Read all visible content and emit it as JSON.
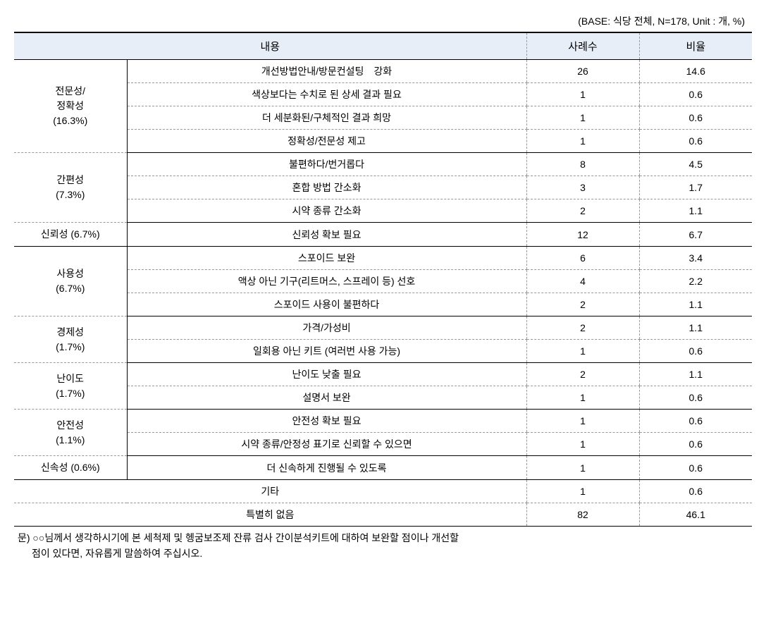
{
  "baseInfo": "(BASE: 식당 전체, N=178, Unit : 개, %)",
  "headers": {
    "content": "내용",
    "count": "사례수",
    "ratio": "비율"
  },
  "categories": [
    {
      "name": "전문성/\n정확성\n(16.3%)",
      "rows": [
        {
          "item": "개선방법안내/방문컨설팅　강화",
          "count": "26",
          "ratio": "14.6"
        },
        {
          "item": "색상보다는 수치로 된 상세 결과 필요",
          "count": "1",
          "ratio": "0.6"
        },
        {
          "item": "더 세분화된/구체적인 결과 희망",
          "count": "1",
          "ratio": "0.6"
        },
        {
          "item": "정확성/전문성 제고",
          "count": "1",
          "ratio": "0.6"
        }
      ]
    },
    {
      "name": "간편성\n(7.3%)",
      "rows": [
        {
          "item": "불편하다/번거롭다",
          "count": "8",
          "ratio": "4.5"
        },
        {
          "item": "혼합 방법 간소화",
          "count": "3",
          "ratio": "1.7"
        },
        {
          "item": "시약 종류 간소화",
          "count": "2",
          "ratio": "1.1"
        }
      ]
    },
    {
      "name": "신뢰성 (6.7%)",
      "rows": [
        {
          "item": "신뢰성 확보 필요",
          "count": "12",
          "ratio": "6.7"
        }
      ]
    },
    {
      "name": "사용성\n(6.7%)",
      "rows": [
        {
          "item": "스포이드 보완",
          "count": "6",
          "ratio": "3.4"
        },
        {
          "item": "액상 아닌 기구(리트머스, 스프레이 등) 선호",
          "count": "4",
          "ratio": "2.2"
        },
        {
          "item": "스포이드 사용이 불편하다",
          "count": "2",
          "ratio": "1.1"
        }
      ]
    },
    {
      "name": "경제성\n(1.7%)",
      "rows": [
        {
          "item": "가격/가성비",
          "count": "2",
          "ratio": "1.1"
        },
        {
          "item": "일회용 아닌 키트 (여러번 사용 가능)",
          "count": "1",
          "ratio": "0.6"
        }
      ]
    },
    {
      "name": "난이도\n(1.7%)",
      "rows": [
        {
          "item": "난이도 낮출 필요",
          "count": "2",
          "ratio": "1.1"
        },
        {
          "item": "설명서 보완",
          "count": "1",
          "ratio": "0.6"
        }
      ]
    },
    {
      "name": "안전성\n(1.1%)",
      "rows": [
        {
          "item": "안전성 확보 필요",
          "count": "1",
          "ratio": "0.6"
        },
        {
          "item": "시약 종류/안정성 표기로 신뢰할 수 있으면",
          "count": "1",
          "ratio": "0.6"
        }
      ]
    },
    {
      "name": "신속성 (0.6%)",
      "rows": [
        {
          "item": "더 신속하게 진행될 수 있도록",
          "count": "1",
          "ratio": "0.6"
        }
      ]
    }
  ],
  "noCatRows": [
    {
      "item": "기타",
      "count": "1",
      "ratio": "0.6"
    },
    {
      "item": "특별히 없음",
      "count": "82",
      "ratio": "46.1"
    }
  ],
  "footerLine1": "문) ○○님께서 생각하시기에 본 세척제 및 헹굼보조제 잔류 검사 간이분석키트에 대하여 보완할 점이나 개선할",
  "footerLine2": "점이 있다면, 자유롭게 말씀하여 주십시오.",
  "styles": {
    "headerBg": "#e8eef7",
    "borderColor": "#000000",
    "dashColor": "#999999",
    "textColor": "#000000",
    "bodyBg": "#ffffff",
    "fontSize": 14,
    "headerFontSize": 15,
    "containerWidth": 1047,
    "col1Width": 620,
    "col2Width": 160,
    "col3Width": 160
  }
}
